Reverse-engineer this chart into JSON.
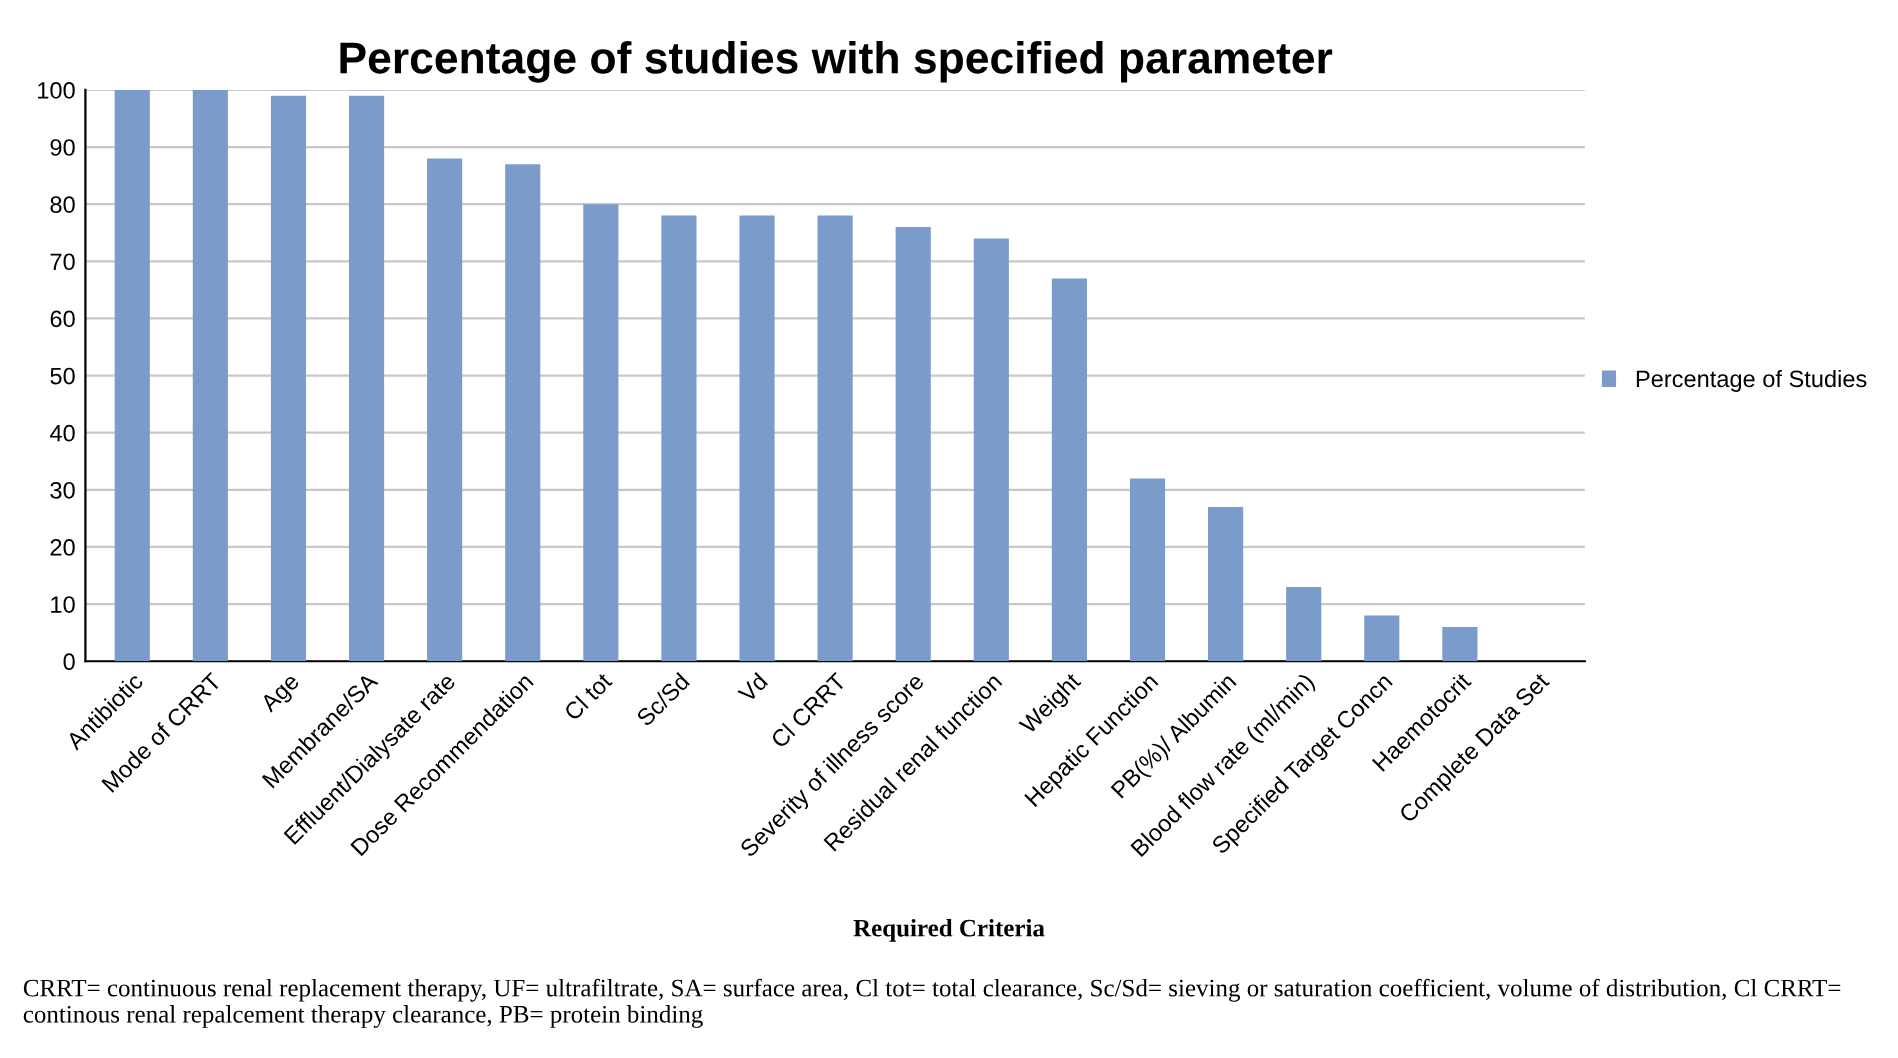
{
  "chart_data": {
    "type": "bar",
    "title": "Percentage of studies with specified parameter",
    "categories": [
      "Antibiotic",
      "Mode of CRRT",
      "Age",
      "Membrane/SA",
      "Effluent/Dialysate rate",
      "Dose Recommendation",
      "Cl tot",
      "Sc/Sd",
      "Vd",
      "Cl CRRT",
      "Severity of illness score",
      "Residual renal function",
      "Weight",
      "Hepatic Function",
      "PB(%)/ Albumin",
      "Blood flow rate (ml/min)",
      "Specified Target Concn",
      "Haemotocrit",
      "Complete Data Set"
    ],
    "series": [
      {
        "name": "Percentage of Studies",
        "color": "#7b9bcb",
        "values": [
          100,
          100,
          99,
          99,
          88,
          87,
          80,
          78,
          78,
          78,
          76,
          74,
          67,
          32,
          27,
          13,
          8,
          6,
          0
        ]
      }
    ],
    "ylim": [
      0,
      100
    ],
    "yticks": [
      0,
      10,
      20,
      30,
      40,
      50,
      60,
      70,
      80,
      90,
      100
    ],
    "grid": "y",
    "legend": "right",
    "xlabel": "Required Criteria",
    "annotations": [
      "CRRT= continuous renal replacement therapy, UF= ultrafiltrate, SA= surface area, Cl tot= total clearance, Sc/Sd= sieving or saturation coefficient, volume of distribution, Cl CRRT= continous renal repalcement therapy clearance, PB= protein binding"
    ]
  }
}
